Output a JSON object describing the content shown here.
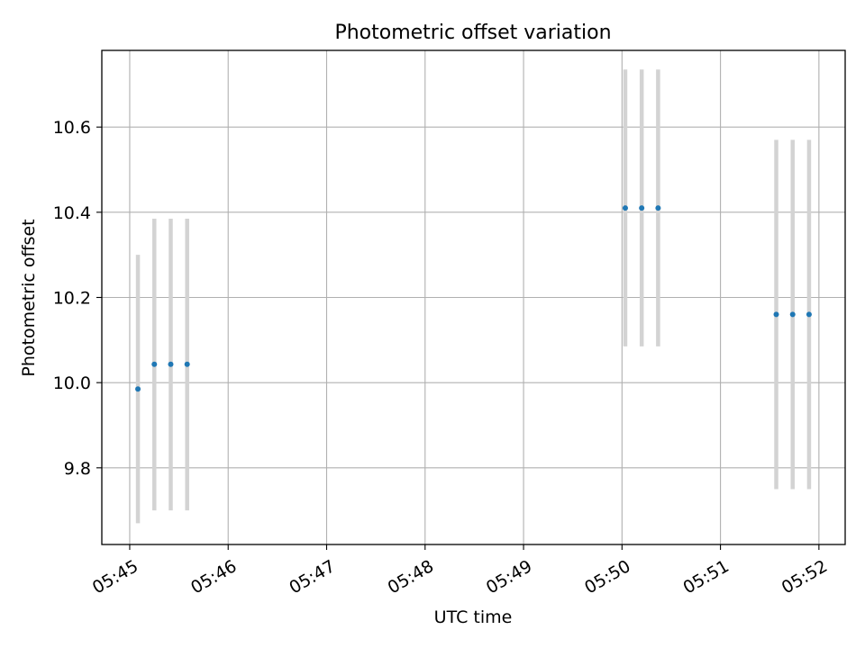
{
  "chart_data": {
    "type": "scatter",
    "title": "Photometric offset variation",
    "xlabel": "UTC time",
    "ylabel": "Photometric offset",
    "grid": true,
    "legend": "none",
    "xlim": [
      "05:44:43",
      "05:52:16"
    ],
    "ylim": [
      9.62,
      10.78
    ],
    "x_ticks": [
      "05:45",
      "05:46",
      "05:47",
      "05:48",
      "05:49",
      "05:50",
      "05:51",
      "05:52"
    ],
    "y_ticks": [
      9.8,
      10.0,
      10.2,
      10.4,
      10.6
    ],
    "y_tick_labels": [
      "9.8",
      "10.0",
      "10.2",
      "10.4",
      "10.6"
    ],
    "points": [
      {
        "x": "05:45:05",
        "y": 9.985,
        "err_low": 9.67,
        "err_high": 10.3
      },
      {
        "x": "05:45:15",
        "y": 10.043,
        "err_low": 9.7,
        "err_high": 10.385
      },
      {
        "x": "05:45:25",
        "y": 10.043,
        "err_low": 9.7,
        "err_high": 10.385
      },
      {
        "x": "05:45:35",
        "y": 10.043,
        "err_low": 9.7,
        "err_high": 10.385
      },
      {
        "x": "05:50:02",
        "y": 10.41,
        "err_low": 10.085,
        "err_high": 10.735
      },
      {
        "x": "05:50:12",
        "y": 10.41,
        "err_low": 10.085,
        "err_high": 10.735
      },
      {
        "x": "05:50:22",
        "y": 10.41,
        "err_low": 10.085,
        "err_high": 10.735
      },
      {
        "x": "05:51:34",
        "y": 10.16,
        "err_low": 9.75,
        "err_high": 10.57
      },
      {
        "x": "05:51:44",
        "y": 10.16,
        "err_low": 9.75,
        "err_high": 10.57
      },
      {
        "x": "05:51:54",
        "y": 10.16,
        "err_low": 9.75,
        "err_high": 10.57
      }
    ],
    "colors": {
      "marker": "#1f77b4",
      "errorbar": "#d3d3d3",
      "grid": "#b0b0b0",
      "axes": "#000000"
    }
  }
}
